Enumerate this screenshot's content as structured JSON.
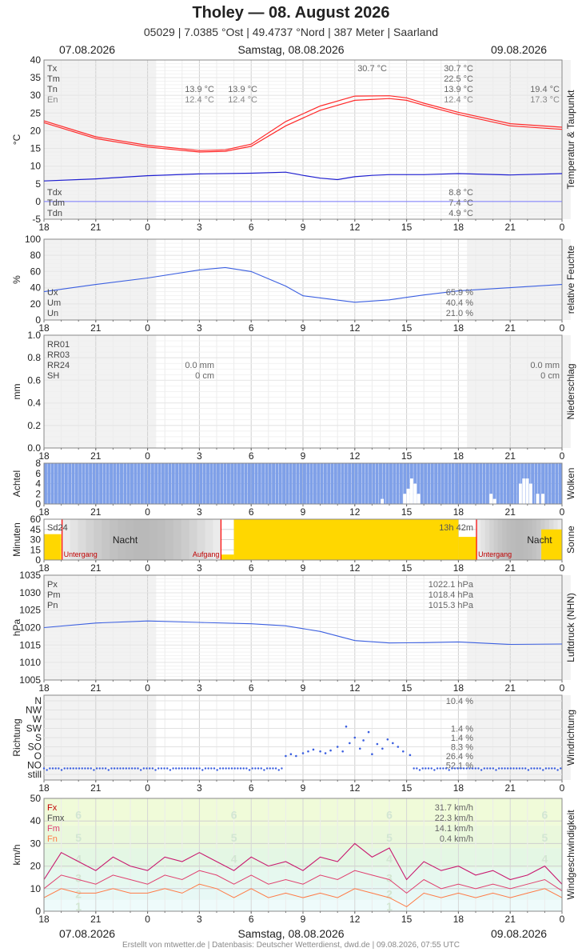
{
  "header": {
    "title": "Tholey  —  08. August 2026",
    "subtitle": "05029  |  7.0385 °Ost  |  49.4737 °Nord  |  387 Meter  |  Saarland",
    "date_left": "07.08.2026",
    "date_center": "Samstag, 08.08.2026",
    "date_right": "09.08.2026"
  },
  "footer": "Erstellt von mtwetter.de | Datenbasis: Deutscher Wetterdienst, dwd.de | 09.08.2026, 07:55 UTC",
  "colors": {
    "temperature": "#ff2a2a",
    "dewpoint": "#1f1fd0",
    "series_blue": "#3b5fe0",
    "cloud": "#7fa0e8",
    "sun": "#ffd700",
    "night": "#b8b8b8",
    "sunline": "#ff0000",
    "gust": "#c8186e",
    "wind_mean": "#e0406f",
    "wind_min": "#ff7a45"
  },
  "chart_data": [
    {
      "id": "temp",
      "type": "line",
      "ylabel": "°C",
      "side_label": "Temperatur & Taupunkt",
      "ylim": [
        -5,
        40
      ],
      "ytick_labels": [
        "40",
        "35",
        "30",
        "25",
        "20",
        "15",
        "10",
        "5",
        "0",
        "-5"
      ],
      "x_ticks": [
        "18",
        "21",
        "0",
        "3",
        "6",
        "9",
        "12",
        "15",
        "18",
        "21",
        "0",
        "3",
        "6"
      ],
      "legend_top": [
        "Tx",
        "Tm",
        "Tn",
        "En"
      ],
      "legend_bottom": [
        "Tdx",
        "Tdm",
        "Tdn"
      ],
      "annot": [
        "30.7 °C",
        "30.7 °C",
        "22.5 °C",
        "13.9 °C",
        "12.4 °C",
        "13.9 °C",
        "12.4 °C",
        "13.9 °C",
        "12.4 °C",
        "19.4 °C",
        "17.3 °C",
        "8.8 °C",
        "7.4 °C",
        "4.9 °C"
      ],
      "series": [
        {
          "name": "Tx",
          "x": [
            18,
            21,
            24,
            27,
            28.5,
            30,
            32,
            34,
            36,
            38,
            39,
            40,
            42,
            45,
            48
          ],
          "values": [
            22.8,
            18.3,
            15.9,
            14.4,
            14.6,
            16.2,
            22.6,
            27.0,
            29.8,
            29.9,
            29.3,
            27.8,
            25.2,
            22.0,
            21.0
          ]
        },
        {
          "name": "Tn",
          "x": [
            18,
            21,
            24,
            27,
            28.5,
            30,
            32,
            34,
            36,
            38,
            39,
            40,
            42,
            45,
            48
          ],
          "values": [
            22.3,
            17.8,
            15.4,
            14.0,
            14.2,
            15.6,
            21.4,
            25.8,
            28.6,
            29.1,
            28.6,
            27.2,
            24.6,
            21.4,
            20.4
          ]
        },
        {
          "name": "Tdm",
          "x": [
            18,
            21,
            24,
            27,
            30,
            32,
            33,
            34,
            35,
            36,
            37,
            38,
            40,
            42,
            45,
            48
          ],
          "values": [
            5.8,
            6.4,
            7.3,
            7.8,
            8.0,
            8.3,
            7.4,
            6.6,
            6.2,
            7.0,
            7.4,
            7.6,
            7.6,
            7.9,
            7.5,
            7.9
          ]
        }
      ]
    },
    {
      "id": "humidity",
      "type": "line",
      "ylabel": "%",
      "side_label": "relative Feuchte",
      "ylim": [
        0,
        100
      ],
      "ytick_labels": [
        "100",
        "80",
        "60",
        "40",
        "20",
        "0"
      ],
      "x_ticks": [
        "18",
        "21",
        "0",
        "3",
        "6",
        "9",
        "12",
        "15",
        "18",
        "21",
        "0",
        "3",
        "6"
      ],
      "legend": [
        "Ux",
        "Um",
        "Un"
      ],
      "annot": [
        "65.9 %",
        "40.4 %",
        "21.0 %"
      ],
      "series": [
        {
          "name": "Um",
          "x": [
            18,
            21,
            24,
            27,
            28.5,
            30,
            32,
            33,
            36,
            38,
            39,
            40,
            42,
            45,
            48
          ],
          "values": [
            35,
            44,
            52,
            62,
            65,
            60,
            42,
            30,
            22,
            25,
            28,
            31,
            36,
            40,
            44
          ]
        }
      ]
    },
    {
      "id": "precip",
      "type": "line",
      "ylabel": "mm",
      "side_label": "Niederschlag",
      "ylim": [
        0,
        1
      ],
      "ytick_labels": [
        "1.0",
        "0.8",
        "0.6",
        "0.4",
        "0.2",
        "0.0"
      ],
      "x_ticks": [
        "18",
        "21",
        "0",
        "3",
        "6",
        "9",
        "12",
        "15",
        "18",
        "21",
        "0",
        "3",
        "6"
      ],
      "legend": [
        "RR01",
        "RR03",
        "RR24",
        "SH"
      ],
      "annot": [
        "0.0 mm",
        "0 cm",
        "0.0 mm",
        "0 cm"
      ]
    },
    {
      "id": "clouds",
      "type": "bar",
      "ylabel": "Achtel",
      "side_label": "Wolken",
      "ylim": [
        0,
        8
      ],
      "ytick_labels": [
        "8",
        "6",
        "4",
        "2",
        "0"
      ],
      "x_ticks": [
        "18",
        "21",
        "0",
        "3",
        "6",
        "9",
        "12",
        "15",
        "18",
        "21",
        "0",
        "3",
        "6"
      ],
      "clear_gaps": [
        {
          "x": 37.5,
          "octas": 1
        },
        {
          "x": 38.8,
          "octas": 2
        },
        {
          "x": 39.0,
          "octas": 3
        },
        {
          "x": 39.2,
          "octas": 5
        },
        {
          "x": 39.4,
          "octas": 4
        },
        {
          "x": 39.6,
          "octas": 2
        },
        {
          "x": 43.8,
          "octas": 2
        },
        {
          "x": 44.0,
          "octas": 1
        },
        {
          "x": 45.5,
          "octas": 4
        },
        {
          "x": 45.7,
          "octas": 5
        },
        {
          "x": 45.9,
          "octas": 5
        },
        {
          "x": 46.1,
          "octas": 4
        },
        {
          "x": 46.5,
          "octas": 2
        },
        {
          "x": 46.8,
          "octas": 2
        }
      ]
    },
    {
      "id": "sun",
      "type": "bar",
      "ylabel": "Minuten",
      "side_label": "Sonne",
      "ylim": [
        0,
        60
      ],
      "ytick_labels": [
        "60",
        "45",
        "30",
        "15",
        "0"
      ],
      "x_ticks": [
        "18",
        "21",
        "0",
        "3",
        "6",
        "9",
        "12",
        "15",
        "18",
        "21",
        "0",
        "3",
        "6"
      ],
      "legend": [
        "Sd24"
      ],
      "sum_label": "13h 42m",
      "night_label": "Nacht",
      "sunset_label": "Untergang",
      "sunrise_label": "Aufgang",
      "sunset_x": [
        19.05,
        43.05
      ],
      "sunrise_x": [
        28.25,
        52.25
      ],
      "bars": [
        {
          "x0": 18,
          "x1": 19,
          "minutes": 38
        },
        {
          "x0": 28.25,
          "x1": 29,
          "minutes": 8
        },
        {
          "x0": 29,
          "x1": 42,
          "minutes": 60
        },
        {
          "x0": 42,
          "x1": 43.05,
          "minutes": 34
        },
        {
          "x0": 46.8,
          "x1": 48,
          "minutes": 45
        }
      ]
    },
    {
      "id": "pressure",
      "type": "line",
      "ylabel": "hPa",
      "side_label": "Luftdruck (NHN)",
      "ylim": [
        1005,
        1035
      ],
      "ytick_labels": [
        "1035",
        "1030",
        "1025",
        "1020",
        "1015",
        "1010",
        "1005"
      ],
      "x_ticks": [
        "18",
        "21",
        "0",
        "3",
        "6",
        "9",
        "12",
        "15",
        "18",
        "21",
        "0",
        "3",
        "6"
      ],
      "legend": [
        "Px",
        "Pm",
        "Pn"
      ],
      "annot": [
        "1022.1 hPa",
        "1018.4 hPa",
        "1015.3 hPa"
      ],
      "series": [
        {
          "name": "Pm",
          "x": [
            18,
            21,
            24,
            27,
            30,
            32,
            34,
            36,
            38,
            40,
            42,
            45,
            48
          ],
          "values": [
            1020.0,
            1021.3,
            1021.9,
            1021.5,
            1021.1,
            1020.5,
            1018.9,
            1016.3,
            1015.6,
            1015.7,
            1015.9,
            1015.2,
            1015.3
          ]
        }
      ]
    },
    {
      "id": "winddir",
      "type": "scatter",
      "ylabel": "Richtung",
      "side_label": "Windrichtung",
      "directions": [
        "N",
        "NW",
        "W",
        "SW",
        "S",
        "SO",
        "O",
        "NO",
        "still"
      ],
      "x_ticks": [
        "18",
        "21",
        "0",
        "3",
        "6",
        "9",
        "12",
        "15",
        "18",
        "21",
        "0",
        "3",
        "6"
      ],
      "annot": [
        "10.4 %",
        "",
        "",
        "1.4 %",
        "1.4 %",
        "8.3 %",
        "26.4 %",
        "52.1 %",
        ""
      ],
      "points": [
        {
          "x": 32.0,
          "dir": 1
        },
        {
          "x": 32.3,
          "dir": 1.2
        },
        {
          "x": 32.6,
          "dir": 1
        },
        {
          "x": 33.0,
          "dir": 1.3
        },
        {
          "x": 33.3,
          "dir": 1.5
        },
        {
          "x": 33.6,
          "dir": 1.7
        },
        {
          "x": 34.0,
          "dir": 1.5
        },
        {
          "x": 34.3,
          "dir": 1.3
        },
        {
          "x": 34.6,
          "dir": 1.6
        },
        {
          "x": 35.0,
          "dir": 2
        },
        {
          "x": 35.3,
          "dir": 1.5
        },
        {
          "x": 35.5,
          "dir": 4.2
        },
        {
          "x": 35.7,
          "dir": 2.4
        },
        {
          "x": 36.0,
          "dir": 3
        },
        {
          "x": 36.3,
          "dir": 1.8
        },
        {
          "x": 36.5,
          "dir": 2.7
        },
        {
          "x": 36.8,
          "dir": 3.6
        },
        {
          "x": 37.0,
          "dir": 1.2
        },
        {
          "x": 37.3,
          "dir": 2.3
        },
        {
          "x": 37.6,
          "dir": 1.8
        },
        {
          "x": 37.9,
          "dir": 2.8
        },
        {
          "x": 38.2,
          "dir": 2.4
        },
        {
          "x": 38.5,
          "dir": 2
        },
        {
          "x": 38.8,
          "dir": 1.5
        },
        {
          "x": 39.2,
          "dir": 1.1
        }
      ]
    },
    {
      "id": "windspeed",
      "type": "line",
      "ylabel": "km/h",
      "side_label": "Windgeschwindigkeit",
      "ylim": [
        0,
        50
      ],
      "ytick_labels": [
        "50",
        "40",
        "30",
        "20",
        "10",
        "0"
      ],
      "x_ticks": [
        "18",
        "21",
        "0",
        "3",
        "6",
        "9",
        "12",
        "15",
        "18",
        "21",
        "0",
        "3",
        "6"
      ],
      "legend": [
        "Fx",
        "Fmx",
        "Fm",
        "Fn"
      ],
      "annot": [
        "31.7 km/h",
        "22.3 km/h",
        "14.1 km/h",
        "0.4 km/h"
      ],
      "bft_bands": [
        "1",
        "2",
        "3",
        "4",
        "5",
        "6"
      ],
      "series": [
        {
          "name": "Fx",
          "x": [
            18,
            19,
            20,
            21,
            22,
            23,
            24,
            25,
            26,
            27,
            28,
            29,
            30,
            31,
            32,
            33,
            34,
            35,
            36,
            37,
            38,
            39,
            40,
            41,
            42,
            43,
            44,
            45,
            46,
            47,
            48
          ],
          "values": [
            14,
            26,
            22,
            18,
            24,
            20,
            18,
            24,
            22,
            26,
            22,
            18,
            24,
            20,
            22,
            18,
            24,
            22,
            30,
            24,
            28,
            14,
            22,
            18,
            20,
            16,
            18,
            14,
            16,
            20,
            12
          ]
        },
        {
          "name": "Fm",
          "x": [
            18,
            19,
            20,
            21,
            22,
            23,
            24,
            25,
            26,
            27,
            28,
            29,
            30,
            31,
            32,
            33,
            34,
            35,
            36,
            37,
            38,
            39,
            40,
            41,
            42,
            43,
            44,
            45,
            46,
            47,
            48
          ],
          "values": [
            10,
            16,
            14,
            12,
            16,
            14,
            12,
            16,
            14,
            18,
            16,
            12,
            16,
            12,
            14,
            12,
            16,
            14,
            18,
            16,
            14,
            8,
            14,
            10,
            12,
            10,
            12,
            10,
            12,
            14,
            9
          ]
        },
        {
          "name": "Fn",
          "x": [
            18,
            19,
            20,
            21,
            22,
            23,
            24,
            25,
            26,
            27,
            28,
            29,
            30,
            31,
            32,
            33,
            34,
            35,
            36,
            37,
            38,
            39,
            40,
            41,
            42,
            43,
            44,
            45,
            46,
            47,
            48
          ],
          "values": [
            6,
            10,
            8,
            8,
            10,
            8,
            8,
            10,
            8,
            12,
            10,
            6,
            10,
            6,
            8,
            6,
            8,
            6,
            10,
            8,
            6,
            2,
            8,
            6,
            8,
            6,
            8,
            6,
            8,
            10,
            6
          ]
        }
      ]
    }
  ]
}
